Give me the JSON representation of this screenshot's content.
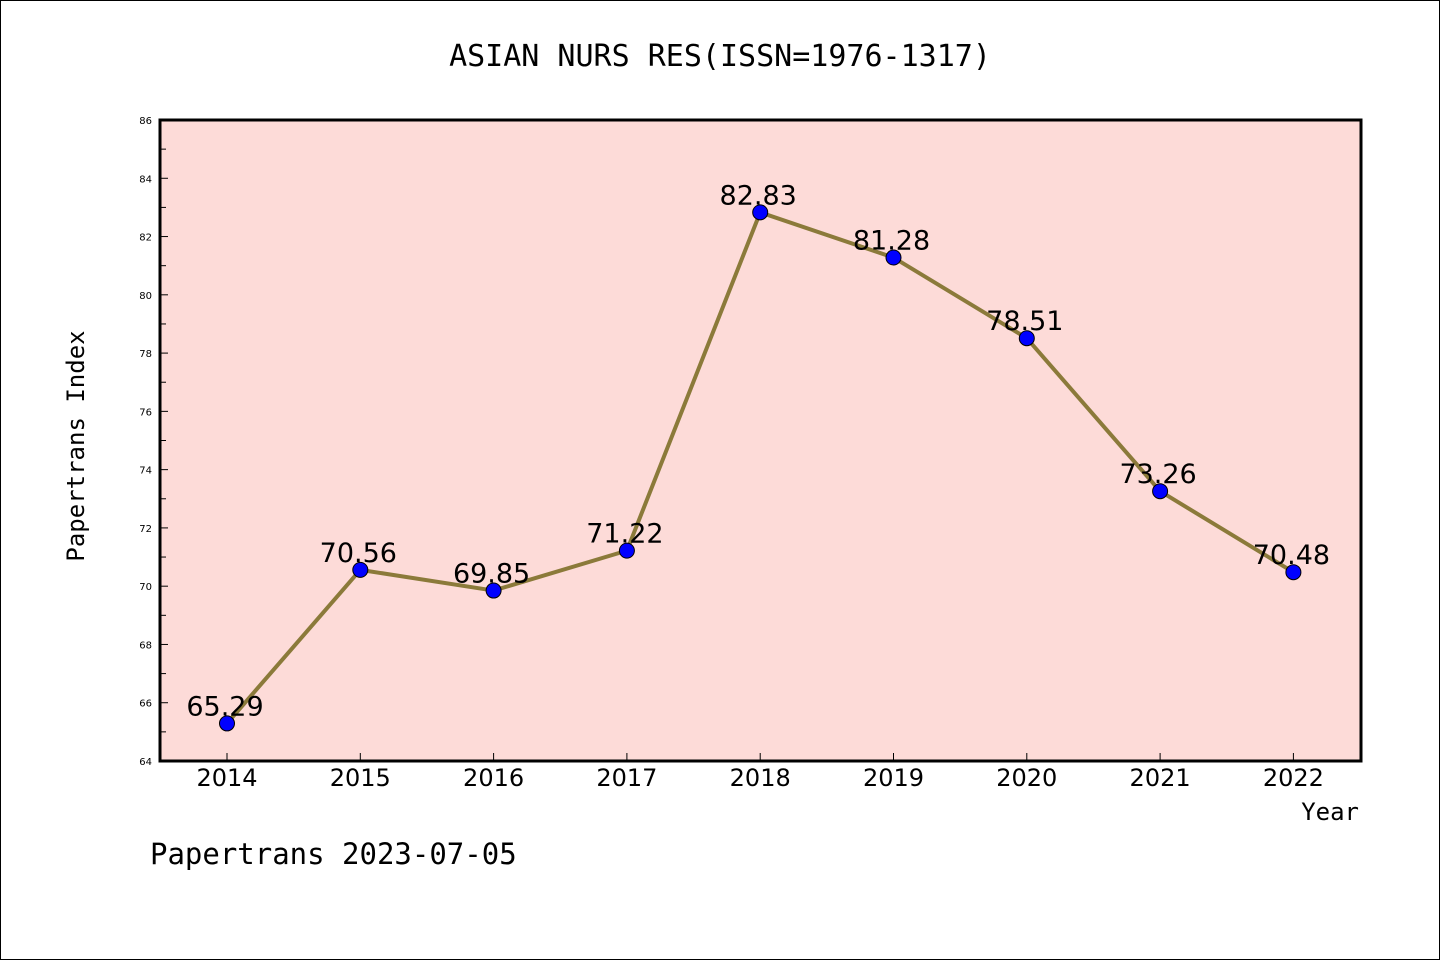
{
  "chart_data": {
    "type": "line",
    "title": "ASIAN NURS RES(ISSN=1976-1317)",
    "xlabel": "Year",
    "ylabel": "Papertrans Index",
    "categories": [
      "2014",
      "2015",
      "2016",
      "2017",
      "2018",
      "2019",
      "2020",
      "2021",
      "2022"
    ],
    "values": [
      65.29,
      70.56,
      69.85,
      71.22,
      82.83,
      81.28,
      78.51,
      73.26,
      70.48
    ],
    "data_labels": [
      "65.29",
      "70.56",
      "69.85",
      "71.22",
      "82.83",
      "81.28",
      "78.51",
      "73.26",
      "70.48"
    ],
    "ylim": [
      64,
      86
    ],
    "yticks": [
      "64",
      "66",
      "68",
      "70",
      "72",
      "74",
      "76",
      "78",
      "80",
      "82",
      "84",
      "86"
    ],
    "grid": false,
    "legend": "none",
    "colors": {
      "plot_background": "#fddbd8",
      "line": "#8b7a3a",
      "marker": "#0000ff"
    }
  },
  "footer": "Papertrans 2023-07-05"
}
